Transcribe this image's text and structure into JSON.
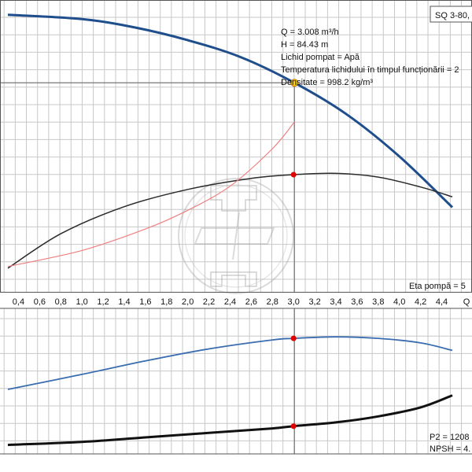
{
  "product_label": "SQ 3-80,",
  "info": [
    "Q = 3.008 m³/h",
    "H = 84.43 m",
    "Lichid pompat = Apă",
    "Temperatura lichidului în timpul funcționării = 2",
    "Densitate = 998.2 kg/m³"
  ],
  "eta_label": "Eta pompă = 5",
  "p2_label": "P2 = 1208",
  "npsh_label": "NPSH = 4.",
  "colors": {
    "head_curve": "#1f4e8c",
    "eta_curve": "#2b2b2b",
    "system_curve": "#f08080",
    "lower_blue": "#3a6db0",
    "lower_black": "#111111",
    "operating_point": "#ffd400",
    "marker": "#e00000",
    "grid": "#c8c8c8"
  },
  "chart_data": [
    {
      "type": "line",
      "x_ticks": [
        "0,4",
        "0,6",
        "0,8",
        "1,0",
        "1,2",
        "1,4",
        "1,6",
        "1,8",
        "2,0",
        "2,2",
        "2,4",
        "2,6",
        "2,8",
        "3,0",
        "3,2",
        "3,4",
        "3,6",
        "3,8",
        "4,0",
        "4,2",
        "4,4"
      ],
      "x_axis_label": "Q",
      "xlim": [
        0.3,
        4.53
      ],
      "grid": true,
      "series": [
        {
          "role": "head",
          "points": [
            [
              0.3,
              100.5
            ],
            [
              1.0,
              99.5
            ],
            [
              1.5,
              97.5
            ],
            [
              2.0,
              94.5
            ],
            [
              2.5,
              90.5
            ],
            [
              3.008,
              84.43
            ],
            [
              3.5,
              77
            ],
            [
              4.0,
              67
            ],
            [
              4.5,
              55
            ]
          ]
        },
        {
          "role": "eta",
          "points": [
            [
              0.3,
              8
            ],
            [
              0.8,
              22
            ],
            [
              1.4,
              33
            ],
            [
              2.0,
              40
            ],
            [
              2.6,
              44.5
            ],
            [
              3.0,
              46
            ],
            [
              3.4,
              46.5
            ],
            [
              3.8,
              45
            ],
            [
              4.2,
              41
            ],
            [
              4.5,
              37
            ]
          ]
        },
        {
          "role": "system",
          "points": [
            [
              0.3,
              8
            ],
            [
              1.0,
              14
            ],
            [
              1.6,
              22
            ],
            [
              2.0,
              29
            ],
            [
              2.4,
              38
            ],
            [
              2.8,
              52
            ],
            [
              3.008,
              62
            ]
          ]
        }
      ],
      "operating_point": {
        "q": 3.008,
        "h": 84.43
      },
      "eta_marker": {
        "q": 3.0,
        "eta": 46
      }
    },
    {
      "type": "line",
      "xlim": [
        0.3,
        4.53
      ],
      "grid": true,
      "series": [
        {
          "role": "p2",
          "points": [
            [
              0.3,
              43
            ],
            [
              1.0,
              53
            ],
            [
              1.6,
              62
            ],
            [
              2.2,
              70
            ],
            [
              2.8,
              76
            ],
            [
              3.0,
              77
            ],
            [
              3.4,
              78
            ],
            [
              3.8,
              77
            ],
            [
              4.2,
              74
            ],
            [
              4.5,
              69
            ]
          ]
        },
        {
          "role": "npsh",
          "points": [
            [
              0.3,
              6
            ],
            [
              1.0,
              8
            ],
            [
              1.6,
              11
            ],
            [
              2.2,
              14
            ],
            [
              2.8,
              17
            ],
            [
              3.0,
              18.5
            ],
            [
              3.4,
              21
            ],
            [
              3.8,
              25
            ],
            [
              4.2,
              31
            ],
            [
              4.5,
              39
            ]
          ]
        }
      ],
      "markers": [
        {
          "q": 3.0,
          "value": 77
        },
        {
          "q": 3.0,
          "value": 18.5
        }
      ]
    }
  ]
}
